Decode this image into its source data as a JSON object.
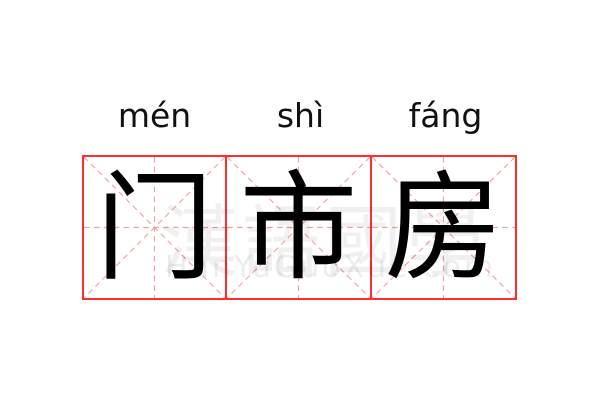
{
  "entries": [
    {
      "pinyin": "mén",
      "char": "门"
    },
    {
      "pinyin": "shì",
      "char": "市"
    },
    {
      "pinyin": "fáng",
      "char": "房"
    }
  ],
  "watermark": {
    "chinese": "漢語國學",
    "latin": "HanYuGuoXue.com"
  },
  "colors": {
    "border": "#ff2e2e",
    "guide": "#f5a0a0",
    "text": "#000000"
  }
}
